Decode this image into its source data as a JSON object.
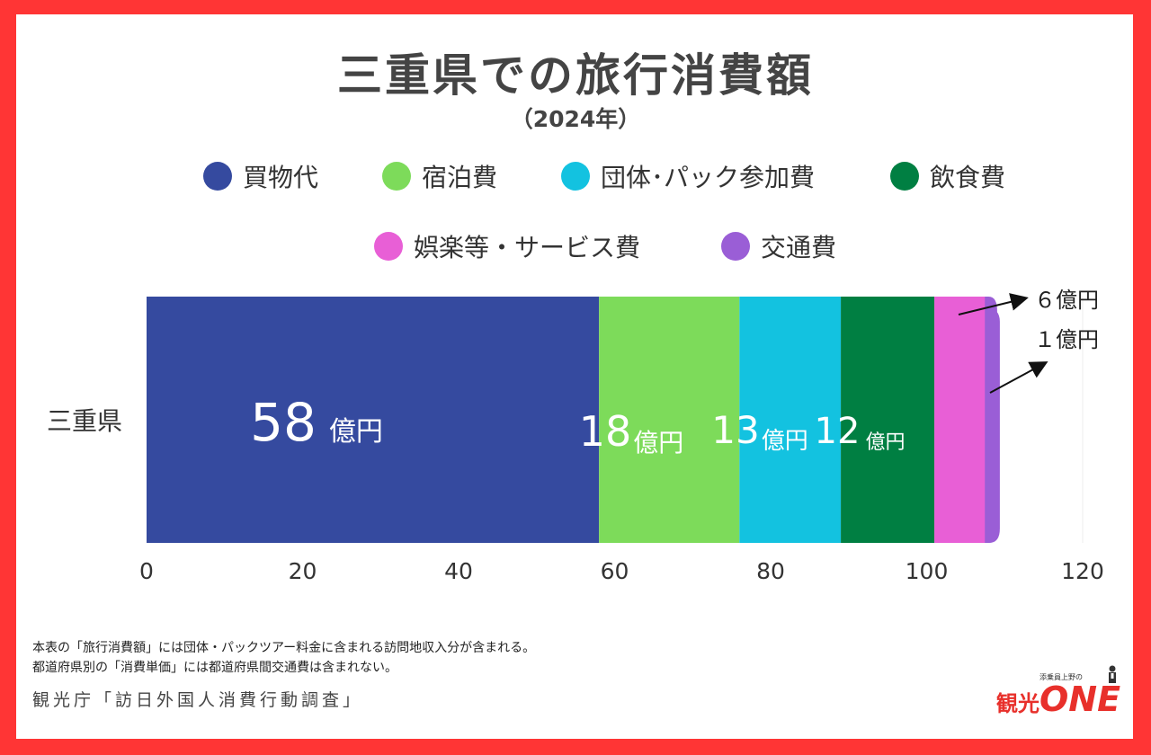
{
  "title": "三重県での旅行消費額",
  "subtitle": "（2024年）",
  "legend": [
    {
      "label": "買物代",
      "color": "#354a9f"
    },
    {
      "label": "宿泊費",
      "color": "#7ddb5a"
    },
    {
      "label": "団体･パック参加費",
      "color": "#13c2e0"
    },
    {
      "label": "飲食費",
      "color": "#007f42"
    },
    {
      "label": "娯楽等・サービス費",
      "color": "#e85fd6"
    },
    {
      "label": "交通費",
      "color": "#9a5ed6"
    }
  ],
  "chart_data": {
    "type": "bar",
    "orientation": "horizontal",
    "stacked": true,
    "categories": [
      "三重県"
    ],
    "series": [
      {
        "name": "買物代",
        "values": [
          58
        ],
        "label_value": "58",
        "label_unit": "億円"
      },
      {
        "name": "宿泊費",
        "values": [
          18
        ],
        "label_value": "18",
        "label_unit": "億円"
      },
      {
        "name": "団体･パック参加費",
        "values": [
          13
        ],
        "label_value": "13",
        "label_unit": "億円"
      },
      {
        "name": "飲食費",
        "values": [
          12
        ],
        "label_value": "12",
        "label_unit": "億円"
      },
      {
        "name": "娯楽等・サービス費",
        "values": [
          6
        ],
        "label_text": "６億円"
      },
      {
        "name": "交通費",
        "values": [
          1
        ],
        "label_text": "１億円"
      }
    ],
    "xticks": [
      "0",
      "20",
      "40",
      "60",
      "80",
      "100",
      "120"
    ],
    "xlim": [
      0,
      120
    ],
    "xlabel": "",
    "ylabel": "",
    "grid": false,
    "legend_position": "top"
  },
  "footnotes": [
    "本表の「旅行消費額」には団体・パックツアー料金に含まれる訪問地収入分が含まれる。",
    "都道府県別の「消費単価」には都道府県間交通費は含まれない。"
  ],
  "source": "観光庁「訪日外国人消費行動調査」",
  "logo": {
    "small_text": "添乗員上野の",
    "kanji": "観光",
    "word": "ONE"
  }
}
